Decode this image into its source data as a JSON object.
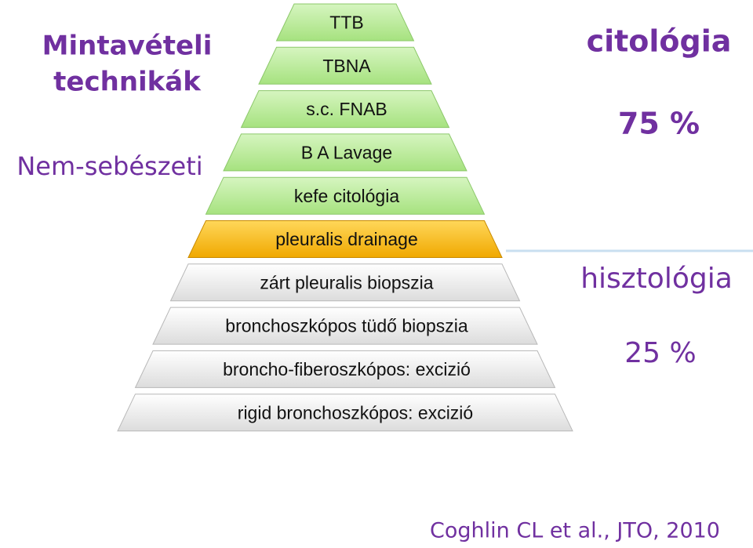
{
  "header": {
    "title": [
      "Mintavételi",
      "technikák"
    ],
    "subtitle": "Nem-sebészeti"
  },
  "pyramid": {
    "levels": [
      "TTB",
      "TBNA",
      "s.c. FNAB",
      "B A Lavage",
      "kefe citológia",
      "pleuralis drainage",
      "zárt pleuralis biopszia",
      "bronchoszkópos tüdő biopszia",
      "broncho-fiberoszkópos: excizió",
      "rigid bronchoszkópos: excizió"
    ]
  },
  "right": {
    "upper_label": "citológia",
    "upper_value": "75 %",
    "lower_label": "hisztológia",
    "lower_value": "25 %"
  },
  "footer": {
    "citation": "Coghlin CL et al., JTO, 2010"
  }
}
